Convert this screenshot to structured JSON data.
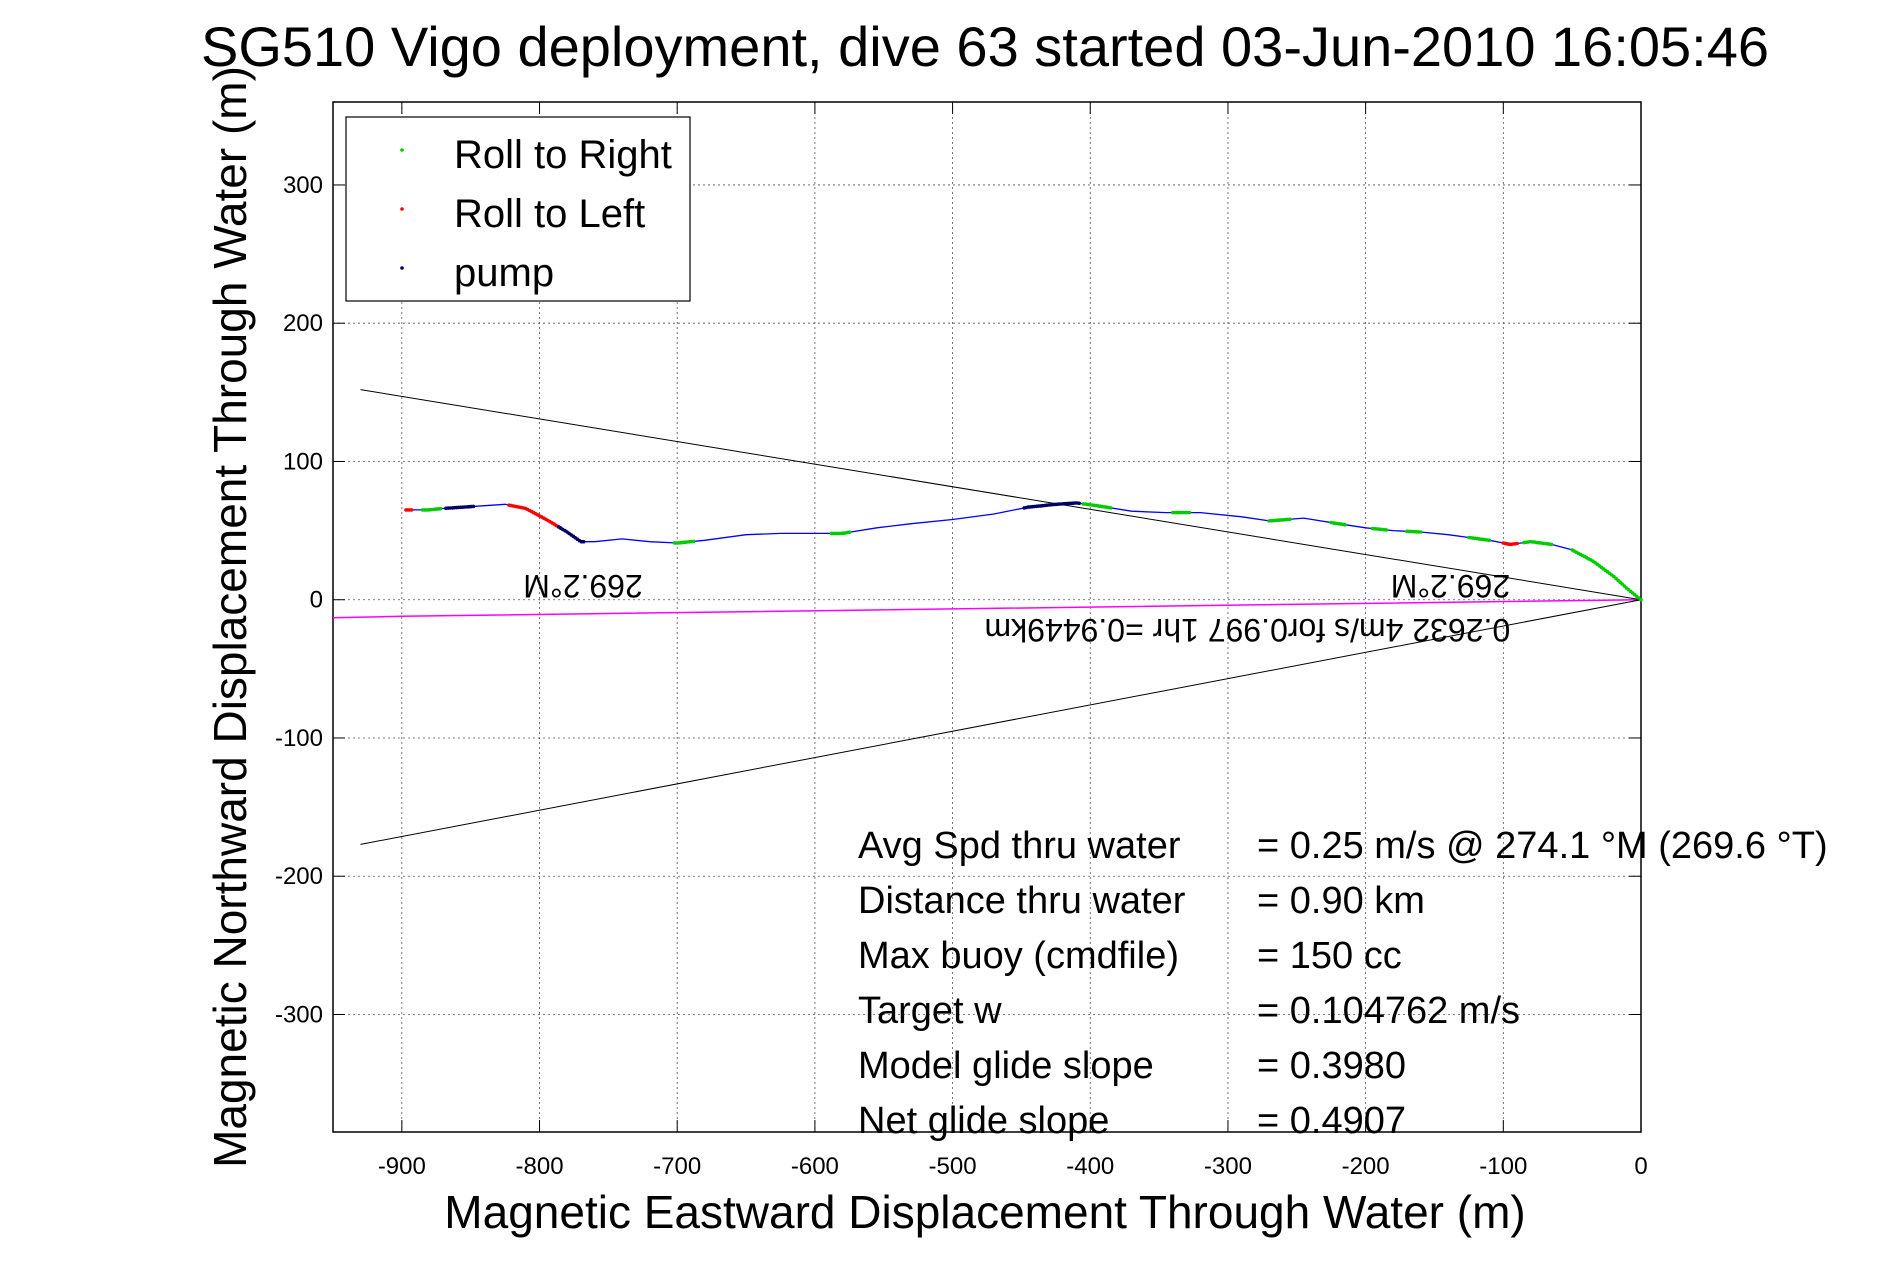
{
  "chart_data": {
    "type": "line",
    "title": "SG510 Vigo deployment, dive 63 started 03-Jun-2010 16:05:46",
    "xlabel": "Magnetic Eastward Displacement Through Water (m)",
    "ylabel": "Magnetic Northward Displacement Through Water (m)",
    "xlim": [
      -950,
      0
    ],
    "ylim": [
      -385,
      360
    ],
    "x_ticks": [
      -900,
      -800,
      -700,
      -600,
      -500,
      -400,
      -300,
      -200,
      -100,
      0
    ],
    "y_ticks": [
      -300,
      -200,
      -100,
      0,
      100,
      200,
      300
    ],
    "grid": true,
    "legend_position": "top-left",
    "colors": {
      "track": "#0000ff",
      "roll_right": "#00cc00",
      "roll_left": "#ff0000",
      "pump": "#000066",
      "current": "#ff00ff",
      "cone": "#000000"
    },
    "legend": [
      {
        "label": "Roll to Right",
        "color": "#00cc00"
      },
      {
        "label": "Roll to Left",
        "color": "#ff0000"
      },
      {
        "label": "pump",
        "color": "#000066"
      }
    ],
    "series": [
      {
        "type": "line",
        "x": [
          0,
          -10,
          -20,
          -35,
          -50,
          -65,
          -80,
          -95,
          -110,
          -125,
          -140,
          -160,
          -180,
          -200,
          -220,
          -245,
          -270,
          -290,
          -320,
          -345,
          -370,
          -395,
          -410,
          -425,
          -445,
          -470,
          -500,
          -530,
          -555,
          -580,
          -605,
          -625,
          -650,
          -680,
          -700,
          -720,
          -740,
          -760,
          -770,
          -780,
          -795,
          -810,
          -825,
          -840,
          -855,
          -870,
          -880,
          -895
        ],
        "y": [
          0,
          8,
          17,
          28,
          36,
          40,
          42,
          40,
          43,
          45,
          47,
          49,
          50,
          52,
          55,
          59,
          57,
          60,
          63,
          63,
          64,
          68,
          70,
          69,
          67,
          62,
          58,
          55,
          52,
          48,
          48,
          48,
          47,
          43,
          41,
          42,
          44,
          42,
          42,
          49,
          58,
          66,
          69,
          68,
          67,
          66,
          65,
          65
        ]
      },
      {
        "type": "line",
        "x": [
          0,
          -900,
          -950
        ],
        "y": [
          0,
          -12,
          -13
        ]
      },
      {
        "type": "line",
        "x": [
          0,
          -930
        ],
        "y": [
          0,
          152
        ]
      },
      {
        "type": "line",
        "x": [
          0,
          -930
        ],
        "y": [
          0,
          -177
        ]
      }
    ],
    "marker_segments": [
      {
        "type": "roll_right",
        "x_from": -50,
        "x_to": 0
      },
      {
        "type": "roll_right",
        "x_from": -85,
        "x_to": -65
      },
      {
        "type": "roll_right",
        "x_from": -125,
        "x_to": -110
      },
      {
        "type": "roll_right",
        "x_from": -170,
        "x_to": -160
      },
      {
        "type": "roll_right",
        "x_from": -195,
        "x_to": -185
      },
      {
        "type": "roll_right",
        "x_from": -225,
        "x_to": -215
      },
      {
        "type": "roll_right",
        "x_from": -270,
        "x_to": -255
      },
      {
        "type": "roll_right",
        "x_from": -340,
        "x_to": -328
      },
      {
        "type": "roll_right",
        "x_from": -405,
        "x_to": -385
      },
      {
        "type": "roll_right",
        "x_from": -588,
        "x_to": -575
      },
      {
        "type": "roll_right",
        "x_from": -702,
        "x_to": -688
      },
      {
        "type": "roll_right",
        "x_from": -885,
        "x_to": -872
      },
      {
        "type": "roll_left",
        "x_from": -100,
        "x_to": -90
      },
      {
        "type": "roll_left",
        "x_from": -822,
        "x_to": -785
      },
      {
        "type": "roll_left",
        "x_from": -897,
        "x_to": -893
      },
      {
        "type": "pump",
        "x_from": -448,
        "x_to": -408
      },
      {
        "type": "pump",
        "x_from": -868,
        "x_to": -848
      },
      {
        "type": "pump",
        "x_from": -786,
        "x_to": -768
      }
    ],
    "annotations": [
      {
        "text": "269.2°M",
        "x": -725,
        "y": 18,
        "rotated": true
      },
      {
        "text": "269.2°M",
        "x": -95,
        "y": 18,
        "rotated": true
      },
      {
        "text": "0.2632 4m/s for0.997 1hr =0.9449km",
        "x": -95,
        "y": -14,
        "rotated": true
      }
    ],
    "stats": [
      {
        "label": "Avg Spd thru water",
        "value": "=  0.25 m/s @ 274.1 °M (269.6 °T)"
      },
      {
        "label": "Distance thru water",
        "value": "=  0.90 km"
      },
      {
        "label": "Max buoy (cmdfile)",
        "value": "= 150 cc"
      },
      {
        "label": "Target w",
        "value": "= 0.104762 m/s"
      },
      {
        "label": "Model glide slope",
        "value": "= 0.3980"
      },
      {
        "label": "Net glide slope",
        "value": "= 0.4907"
      }
    ]
  }
}
